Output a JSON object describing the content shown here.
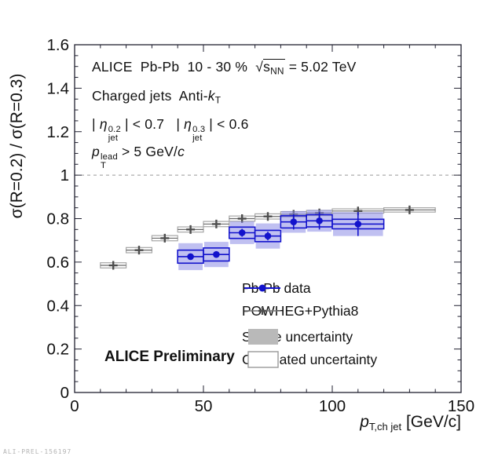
{
  "figure": {
    "watermark": "ALI-PREL-156197",
    "background": "#ffffff"
  },
  "colors": {
    "data_blue": "#1212cc",
    "shape_band": "#8d8de6",
    "powheg_gray": "#4d4d4d",
    "gray_box_border": "#a6a6a6",
    "legend_shape_fill": "#b9b9b9",
    "ref_line": "#999999",
    "axis": "#202030"
  },
  "annotations": {
    "line1": [
      {
        "t": "ALICE  Pb-Pb  10 - 30 %  "
      },
      {
        "root": {
          "base": "s",
          "sub": "NN"
        }
      },
      {
        "t": " = 5.02 TeV"
      }
    ],
    "line2": [
      {
        "t": "Charged jets  Anti-"
      },
      {
        "t": "k",
        "it": true
      },
      {
        "t": "T",
        "sub": true
      }
    ],
    "line3": [
      {
        "t": "| "
      },
      {
        "t": "η",
        "it": true
      },
      {
        "stack": {
          "sup": "0.2",
          "sub": "jet"
        }
      },
      {
        "t": " | < 0.7   | "
      },
      {
        "t": "η",
        "it": true
      },
      {
        "stack": {
          "sup": "0.3",
          "sub": "jet"
        }
      },
      {
        "t": " | < 0.6"
      }
    ],
    "line4": [
      {
        "t": "p",
        "it": true
      },
      {
        "stack": {
          "sup": "lead",
          "sub": "T"
        }
      },
      {
        "t": " > 5 GeV/"
      },
      {
        "t": "c",
        "it": true
      }
    ],
    "preliminary": "ALICE Preliminary"
  },
  "legend": {
    "items": [
      {
        "key": "pbpb",
        "label": "Pb-Pb data",
        "marker": "line-circle"
      },
      {
        "key": "powheg",
        "label": "POWHEG+Pythia8",
        "marker": "line-cross"
      },
      {
        "key": "shape",
        "label": "Shape uncertainty",
        "marker": "filled-box"
      },
      {
        "key": "correlated",
        "label": "Correlated uncertainty",
        "marker": "open-box"
      }
    ]
  },
  "axes": {
    "y_title": "σ(R=0.2) / σ(R=0.3)",
    "x_title": [
      {
        "t": "p",
        "it": true
      },
      {
        "t": "T,ch jet",
        "sub": true
      },
      {
        "t": " [GeV/c]"
      }
    ],
    "x_tick_labels": [
      "0",
      "50",
      "100",
      "150"
    ],
    "y_tick_labels": [
      "0",
      "0.2",
      "0.4",
      "0.6",
      "0.8",
      "1",
      "1.2",
      "1.4",
      "1.6"
    ]
  },
  "chart_data": {
    "type": "scatter",
    "title": "ALICE Pb-Pb 10-30% sqrt(s_NN) = 5.02 TeV, charged jets anti-kT, cross-section ratio R=0.2/R=0.3",
    "xlabel": "p_T,ch jet [GeV/c]",
    "ylabel": "σ(R=0.2) / σ(R=0.3)",
    "xlim": [
      0,
      150
    ],
    "ylim": [
      0,
      1.6
    ],
    "x_major_ticks": [
      0,
      50,
      100,
      150
    ],
    "x_minor_step": 10,
    "y_major_step": 0.2,
    "y_minor_step": 0.05,
    "reference_line_y": 1,
    "grid": false,
    "legend_position": "inside-bottom-right",
    "series": [
      {
        "name": "POWHEG+Pythia8",
        "marker": "cross",
        "points": [
          {
            "bin": [
              10,
              20
            ],
            "x": 15,
            "y": 0.585,
            "stat": 0.008,
            "corr": 0.012
          },
          {
            "bin": [
              20,
              30
            ],
            "x": 25,
            "y": 0.655,
            "stat": 0.008,
            "corr": 0.012
          },
          {
            "bin": [
              30,
              40
            ],
            "x": 35,
            "y": 0.71,
            "stat": 0.008,
            "corr": 0.012
          },
          {
            "bin": [
              40,
              50
            ],
            "x": 45,
            "y": 0.75,
            "stat": 0.008,
            "corr": 0.012
          },
          {
            "bin": [
              50,
              60
            ],
            "x": 55,
            "y": 0.775,
            "stat": 0.008,
            "corr": 0.012
          },
          {
            "bin": [
              60,
              70
            ],
            "x": 65,
            "y": 0.8,
            "stat": 0.008,
            "corr": 0.012
          },
          {
            "bin": [
              70,
              80
            ],
            "x": 75,
            "y": 0.81,
            "stat": 0.008,
            "corr": 0.012
          },
          {
            "bin": [
              80,
              90
            ],
            "x": 85,
            "y": 0.82,
            "stat": 0.008,
            "corr": 0.012
          },
          {
            "bin": [
              90,
              100
            ],
            "x": 95,
            "y": 0.826,
            "stat": 0.008,
            "corr": 0.012
          },
          {
            "bin": [
              100,
              120
            ],
            "x": 110,
            "y": 0.835,
            "stat": 0.008,
            "corr": 0.01
          },
          {
            "bin": [
              120,
              140
            ],
            "x": 130,
            "y": 0.84,
            "stat": 0.008,
            "corr": 0.01
          }
        ]
      },
      {
        "name": "Pb-Pb data",
        "marker": "circle",
        "points": [
          {
            "bin": [
              40,
              50
            ],
            "x": 45,
            "y": 0.625,
            "stat": 0.012,
            "shape": 0.062,
            "corr": 0.03
          },
          {
            "bin": [
              50,
              60
            ],
            "x": 55,
            "y": 0.635,
            "stat": 0.015,
            "shape": 0.058,
            "corr": 0.03
          },
          {
            "bin": [
              60,
              70
            ],
            "x": 65,
            "y": 0.735,
            "stat": 0.018,
            "shape": 0.052,
            "corr": 0.026
          },
          {
            "bin": [
              70,
              80
            ],
            "x": 75,
            "y": 0.72,
            "stat": 0.02,
            "shape": 0.058,
            "corr": 0.026
          },
          {
            "bin": [
              80,
              90
            ],
            "x": 85,
            "y": 0.785,
            "stat": 0.035,
            "shape": 0.05,
            "corr": 0.028
          },
          {
            "bin": [
              90,
              100
            ],
            "x": 95,
            "y": 0.79,
            "stat": 0.04,
            "shape": 0.05,
            "corr": 0.028
          },
          {
            "bin": [
              100,
              120
            ],
            "x": 110,
            "y": 0.775,
            "stat": 0.055,
            "shape": 0.055,
            "corr": 0.022
          }
        ]
      }
    ]
  }
}
